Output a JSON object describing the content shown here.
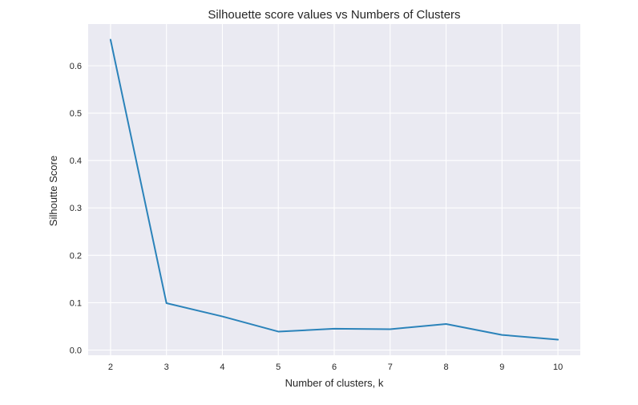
{
  "chart_data": {
    "type": "line",
    "title": "Silhouette score values vs Numbers of Clusters",
    "xlabel": "Number of clusters, k",
    "ylabel": "Silhoutte Score",
    "x": [
      2,
      3,
      4,
      5,
      6,
      7,
      8,
      9,
      10
    ],
    "series": [
      {
        "values": [
          0.655,
          0.099,
          0.071,
          0.039,
          0.045,
          0.044,
          0.055,
          0.032,
          0.022
        ]
      }
    ],
    "xticks": [
      "2",
      "3",
      "4",
      "5",
      "6",
      "7",
      "8",
      "9",
      "10"
    ],
    "yticks": [
      "0.0",
      "0.1",
      "0.2",
      "0.3",
      "0.4",
      "0.5",
      "0.6"
    ],
    "xlim": [
      1.6,
      10.4
    ],
    "ylim": [
      -0.011,
      0.688
    ],
    "grid": true,
    "colors": {
      "line": "#2b83ba",
      "plot_background": "#eaeaf2",
      "grid": "#ffffff"
    }
  }
}
